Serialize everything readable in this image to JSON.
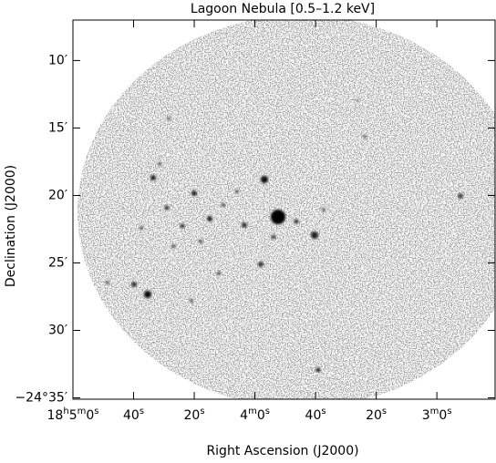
{
  "chart_data": {
    "type": "image",
    "title": "Lagoon Nebula [0.5–1.2 keV]",
    "x_label": "Right Ascension (J2000)",
    "y_label": "Declination (J2000)",
    "xlim": [
      300,
      160.8
    ],
    "ylim": [
      35.1,
      7.0
    ],
    "xticks": [
      {
        "value": 300,
        "label": "18h5m0s"
      },
      {
        "value": 280,
        "label": "40s"
      },
      {
        "value": 260,
        "label": "20s"
      },
      {
        "value": 240,
        "label": "4m0s"
      },
      {
        "value": 220,
        "label": "40s"
      },
      {
        "value": 200,
        "label": "20s"
      },
      {
        "value": 180,
        "label": "3m0s"
      }
    ],
    "yticks": [
      {
        "value": 10,
        "label": "10′"
      },
      {
        "value": 15,
        "label": "15′"
      },
      {
        "value": 20,
        "label": "20′"
      },
      {
        "value": 25,
        "label": "25′"
      },
      {
        "value": 30,
        "label": "30′"
      },
      {
        "value": 35,
        "label": "−24°35′"
      }
    ]
  }
}
